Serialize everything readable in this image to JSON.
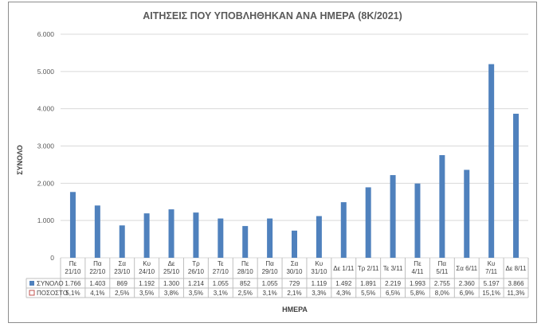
{
  "chart_data": {
    "type": "bar",
    "title": "ΑΙΤΗΣΕΙΣ ΠΟΥ ΥΠΟΒΛΗΘΗΚΑΝ ΑΝΑ ΗΜΕΡΑ (8Κ/2021)",
    "xlabel": "ΗΜΕΡΑ",
    "ylabel": "ΣΥΝΟΛΟ",
    "ylim": [
      0,
      6000
    ],
    "yticks": [
      "0",
      "1.000",
      "2.000",
      "3.000",
      "4.000",
      "5.000",
      "6.000"
    ],
    "grid": true,
    "categories": [
      [
        "Πε",
        "21/10"
      ],
      [
        "Πα",
        "22/10"
      ],
      [
        "Σα",
        "23/10"
      ],
      [
        "Κυ",
        "24/10"
      ],
      [
        "Δε",
        "25/10"
      ],
      [
        "Τρ",
        "26/10"
      ],
      [
        "Τε",
        "27/10"
      ],
      [
        "Πε",
        "28/10"
      ],
      [
        "Πα",
        "29/10"
      ],
      [
        "Σα",
        "30/10"
      ],
      [
        "Κυ",
        "31/10"
      ],
      [
        "Δε 1/11"
      ],
      [
        "Τρ 2/11"
      ],
      [
        "Τε 3/11"
      ],
      [
        "Πε",
        "4/11"
      ],
      [
        "Πα",
        "5/11"
      ],
      [
        "Σα 6/11"
      ],
      [
        "Κυ",
        "7/11"
      ],
      [
        "Δε 8/11"
      ]
    ],
    "series": [
      {
        "name": "ΣΥΝΟΛΟ",
        "color": "#4f81bd",
        "values": [
          1766,
          1403,
          869,
          1192,
          1300,
          1214,
          1055,
          852,
          1055,
          729,
          1119,
          1492,
          1891,
          2219,
          1993,
          2755,
          2360,
          5197,
          3866
        ],
        "labels": [
          "1.766",
          "1.403",
          "869",
          "1.192",
          "1.300",
          "1.214",
          "1.055",
          "852",
          "1.055",
          "729",
          "1.119",
          "1.492",
          "1.891",
          "2.219",
          "1.993",
          "2.755",
          "2.360",
          "5.197",
          "3.866"
        ]
      },
      {
        "name": "ΠΟΣΟΣΤΟ",
        "color": "#c0504d",
        "labels": [
          "5,1%",
          "4,1%",
          "2,5%",
          "3,5%",
          "3,8%",
          "3,5%",
          "3,1%",
          "2,5%",
          "3,1%",
          "2,1%",
          "3,3%",
          "4,3%",
          "5,5%",
          "6,5%",
          "5,8%",
          "8,0%",
          "6,9%",
          "15,1%",
          "11,3%"
        ]
      }
    ]
  }
}
